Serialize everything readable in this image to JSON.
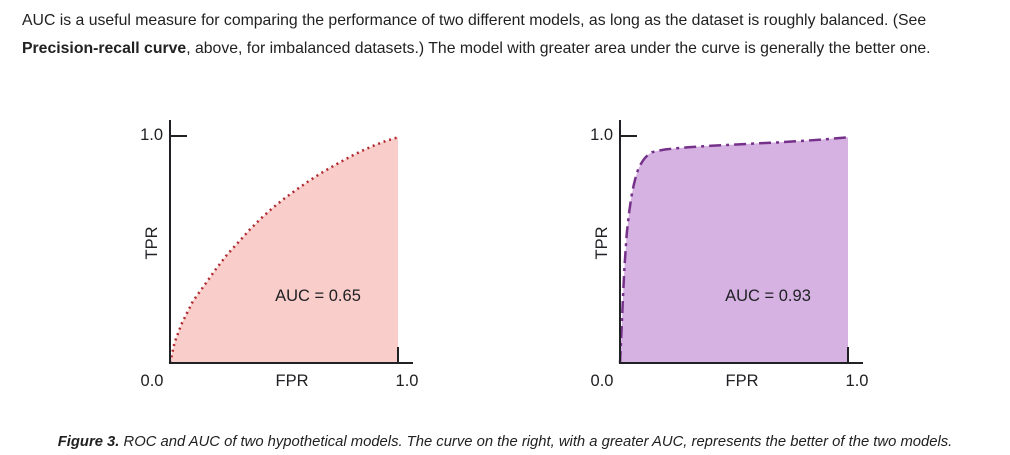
{
  "intro": {
    "text_before_bold": "AUC is a useful measure for comparing the performance of two different models, as long as the dataset is roughly balanced. (See ",
    "bold_text": "Precision-recall curve",
    "text_after_bold": ", above, for imbalanced datasets.) The model with greater area under the curve is generally the better one."
  },
  "caption": {
    "label": "Figure 3.",
    "text": " ROC and AUC of two hypothetical models. The curve on the right, with a greater AUC, represents the better of the two models."
  },
  "chart_data": [
    {
      "type": "area",
      "name": "roc-curve-model-1",
      "title": "",
      "xlabel": "FPR",
      "ylabel": "TPR",
      "xlim": [
        0,
        1
      ],
      "ylim": [
        0,
        1
      ],
      "x_tick_labels": [
        "0.0",
        "1.0"
      ],
      "y_tick_label": "1.0",
      "annotation": "AUC = 0.65",
      "auc": 0.65,
      "grid": false,
      "legend": "none",
      "line_style": "dotted",
      "line_color": "#b02a30",
      "fill_color": "#f9cdc9",
      "x": [
        0,
        0.02,
        0.05,
        0.1,
        0.15,
        0.2,
        0.25,
        0.3,
        0.35,
        0.4,
        0.45,
        0.5,
        0.55,
        0.6,
        0.65,
        0.7,
        0.75,
        0.8,
        0.85,
        0.9,
        0.95,
        1.0
      ],
      "y": [
        0,
        0.09,
        0.17,
        0.27,
        0.34,
        0.41,
        0.475,
        0.53,
        0.585,
        0.635,
        0.68,
        0.72,
        0.757,
        0.792,
        0.825,
        0.855,
        0.883,
        0.91,
        0.934,
        0.956,
        0.975,
        0.99
      ]
    },
    {
      "type": "area",
      "name": "roc-curve-model-2",
      "title": "",
      "xlabel": "FPR",
      "ylabel": "TPR",
      "xlim": [
        0,
        1
      ],
      "ylim": [
        0,
        1
      ],
      "x_tick_labels": [
        "0.0",
        "1.0"
      ],
      "y_tick_label": "1.0",
      "annotation": "AUC = 0.93",
      "auc": 0.93,
      "grid": false,
      "legend": "none",
      "line_style": "dashdot",
      "line_color": "#76328a",
      "fill_color": "#d5b2e2",
      "x": [
        0,
        0.005,
        0.01,
        0.015,
        0.02,
        0.03,
        0.04,
        0.05,
        0.06,
        0.07,
        0.08,
        0.09,
        0.1,
        0.11,
        0.125,
        0.14,
        0.16,
        0.2,
        0.25,
        0.3,
        0.4,
        0.5,
        0.6,
        0.7,
        0.8,
        0.9,
        1.0
      ],
      "y": [
        0,
        0.1,
        0.22,
        0.33,
        0.43,
        0.57,
        0.66,
        0.73,
        0.78,
        0.82,
        0.85,
        0.87,
        0.887,
        0.9,
        0.915,
        0.924,
        0.93,
        0.937,
        0.942,
        0.946,
        0.953,
        0.958,
        0.963,
        0.968,
        0.974,
        0.981,
        0.99
      ]
    }
  ]
}
